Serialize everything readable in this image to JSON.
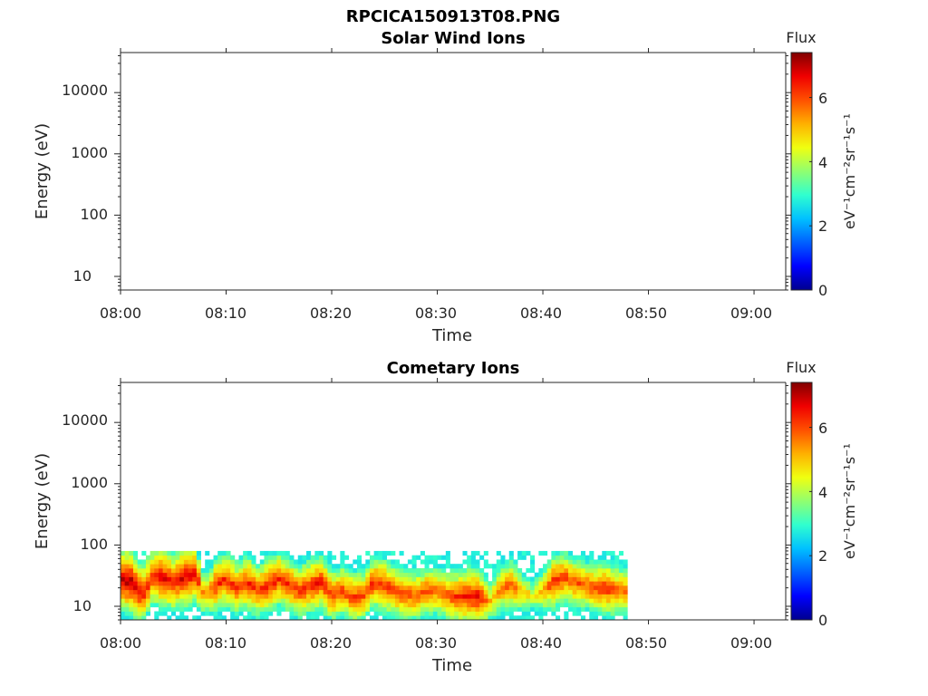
{
  "figure": {
    "filename": "RPCICA150913T08.PNG"
  },
  "colorscale": {
    "stops": [
      "#00008f",
      "#0000ff",
      "#0060ff",
      "#00c0ff",
      "#30ffcf",
      "#90ff70",
      "#f0ff10",
      "#ffb000",
      "#ff5000",
      "#f00000",
      "#800000"
    ]
  },
  "chart_data": [
    {
      "type": "heatmap",
      "title": "Solar Wind Ions",
      "xlabel": "Time",
      "ylabel": "Energy (eV)",
      "x_ticks": [
        "08:00",
        "08:10",
        "08:20",
        "08:30",
        "08:40",
        "08:50",
        "09:00"
      ],
      "xlim": [
        "08:00",
        "09:03"
      ],
      "y_scale": "log",
      "y_ticks": [
        "10",
        "100",
        "1000",
        "10000"
      ],
      "ylim": [
        6,
        45000
      ],
      "colorbar": {
        "label": "Flux",
        "unit": "eV⁻¹cm⁻²sr⁻¹s⁻¹",
        "ticks": [
          "0",
          "2",
          "4",
          "6"
        ],
        "range": [
          0,
          7.4
        ]
      },
      "data_present": false,
      "profile": []
    },
    {
      "type": "heatmap",
      "title": "Cometary Ions",
      "xlabel": "Time",
      "ylabel": "Energy (eV)",
      "x_ticks": [
        "08:00",
        "08:10",
        "08:20",
        "08:30",
        "08:40",
        "08:50",
        "09:00"
      ],
      "xlim": [
        "08:00",
        "09:03"
      ],
      "y_scale": "log",
      "y_ticks": [
        "10",
        "100",
        "1000",
        "10000"
      ],
      "ylim": [
        6,
        45000
      ],
      "colorbar": {
        "label": "Flux",
        "unit": "eV⁻¹cm⁻²sr⁻¹s⁻¹",
        "ticks": [
          "0",
          "2",
          "4",
          "6"
        ],
        "range": [
          0,
          7.4
        ]
      },
      "data_present": true,
      "energy_range_eV": [
        6,
        80
      ],
      "data_time_range": [
        "08:00",
        "08:48"
      ],
      "profile": [
        {
          "t": 0.0,
          "peak_eV": 28,
          "flux": 7.0
        },
        {
          "t": 1.0,
          "peak_eV": 25,
          "flux": 7.2
        },
        {
          "t": 2.0,
          "peak_eV": 15,
          "flux": 6.6
        },
        {
          "t": 3.0,
          "peak_eV": 30,
          "flux": 6.5
        },
        {
          "t": 4.0,
          "peak_eV": 30,
          "flux": 6.8
        },
        {
          "t": 5.0,
          "peak_eV": 25,
          "flux": 6.6
        },
        {
          "t": 6.0,
          "peak_eV": 30,
          "flux": 6.9
        },
        {
          "t": 7.0,
          "peak_eV": 35,
          "flux": 6.8
        },
        {
          "t": 8.0,
          "peak_eV": 15,
          "flux": 5.3
        },
        {
          "t": 9.0,
          "peak_eV": 22,
          "flux": 6.3
        },
        {
          "t": 10.0,
          "peak_eV": 28,
          "flux": 6.4
        },
        {
          "t": 11.0,
          "peak_eV": 20,
          "flux": 6.2
        },
        {
          "t": 12.0,
          "peak_eV": 25,
          "flux": 6.4
        },
        {
          "t": 13.0,
          "peak_eV": 18,
          "flux": 6.2
        },
        {
          "t": 14.0,
          "peak_eV": 22,
          "flux": 6.5
        },
        {
          "t": 15.0,
          "peak_eV": 28,
          "flux": 6.4
        },
        {
          "t": 16.0,
          "peak_eV": 22,
          "flux": 6.3
        },
        {
          "t": 17.0,
          "peak_eV": 18,
          "flux": 6.2
        },
        {
          "t": 18.0,
          "peak_eV": 22,
          "flux": 6.4
        },
        {
          "t": 19.0,
          "peak_eV": 25,
          "flux": 6.5
        },
        {
          "t": 20.0,
          "peak_eV": 15,
          "flux": 6.2
        },
        {
          "t": 21.0,
          "peak_eV": 18,
          "flux": 6.1
        },
        {
          "t": 22.0,
          "peak_eV": 14,
          "flux": 6.2
        },
        {
          "t": 23.0,
          "peak_eV": 15,
          "flux": 6.1
        },
        {
          "t": 24.0,
          "peak_eV": 25,
          "flux": 6.3
        },
        {
          "t": 25.0,
          "peak_eV": 22,
          "flux": 6.4
        },
        {
          "t": 26.0,
          "peak_eV": 18,
          "flux": 6.2
        },
        {
          "t": 27.0,
          "peak_eV": 16,
          "flux": 6.1
        },
        {
          "t": 28.0,
          "peak_eV": 15,
          "flux": 6.0
        },
        {
          "t": 29.0,
          "peak_eV": 18,
          "flux": 6.0
        },
        {
          "t": 30.0,
          "peak_eV": 18,
          "flux": 5.9
        },
        {
          "t": 31.0,
          "peak_eV": 15,
          "flux": 6.0
        },
        {
          "t": 32.0,
          "peak_eV": 14,
          "flux": 6.4
        },
        {
          "t": 33.0,
          "peak_eV": 15,
          "flux": 6.6
        },
        {
          "t": 34.0,
          "peak_eV": 14,
          "flux": 6.8
        },
        {
          "t": 35.0,
          "peak_eV": 12,
          "flux": 5.2
        },
        {
          "t": 36.0,
          "peak_eV": 20,
          "flux": 5.8
        },
        {
          "t": 37.0,
          "peak_eV": 22,
          "flux": 6.0
        },
        {
          "t": 38.0,
          "peak_eV": 18,
          "flux": 5.2
        },
        {
          "t": 39.0,
          "peak_eV": 15,
          "flux": 4.6
        },
        {
          "t": 40.0,
          "peak_eV": 18,
          "flux": 5.3
        },
        {
          "t": 41.0,
          "peak_eV": 25,
          "flux": 6.4
        },
        {
          "t": 42.0,
          "peak_eV": 30,
          "flux": 6.2
        },
        {
          "t": 43.0,
          "peak_eV": 25,
          "flux": 6.0
        },
        {
          "t": 44.0,
          "peak_eV": 22,
          "flux": 5.9
        },
        {
          "t": 45.0,
          "peak_eV": 20,
          "flux": 6.1
        },
        {
          "t": 46.0,
          "peak_eV": 20,
          "flux": 6.4
        },
        {
          "t": 47.0,
          "peak_eV": 18,
          "flux": 6.0
        },
        {
          "t": 48.0,
          "peak_eV": 18,
          "flux": 5.8
        }
      ]
    }
  ]
}
